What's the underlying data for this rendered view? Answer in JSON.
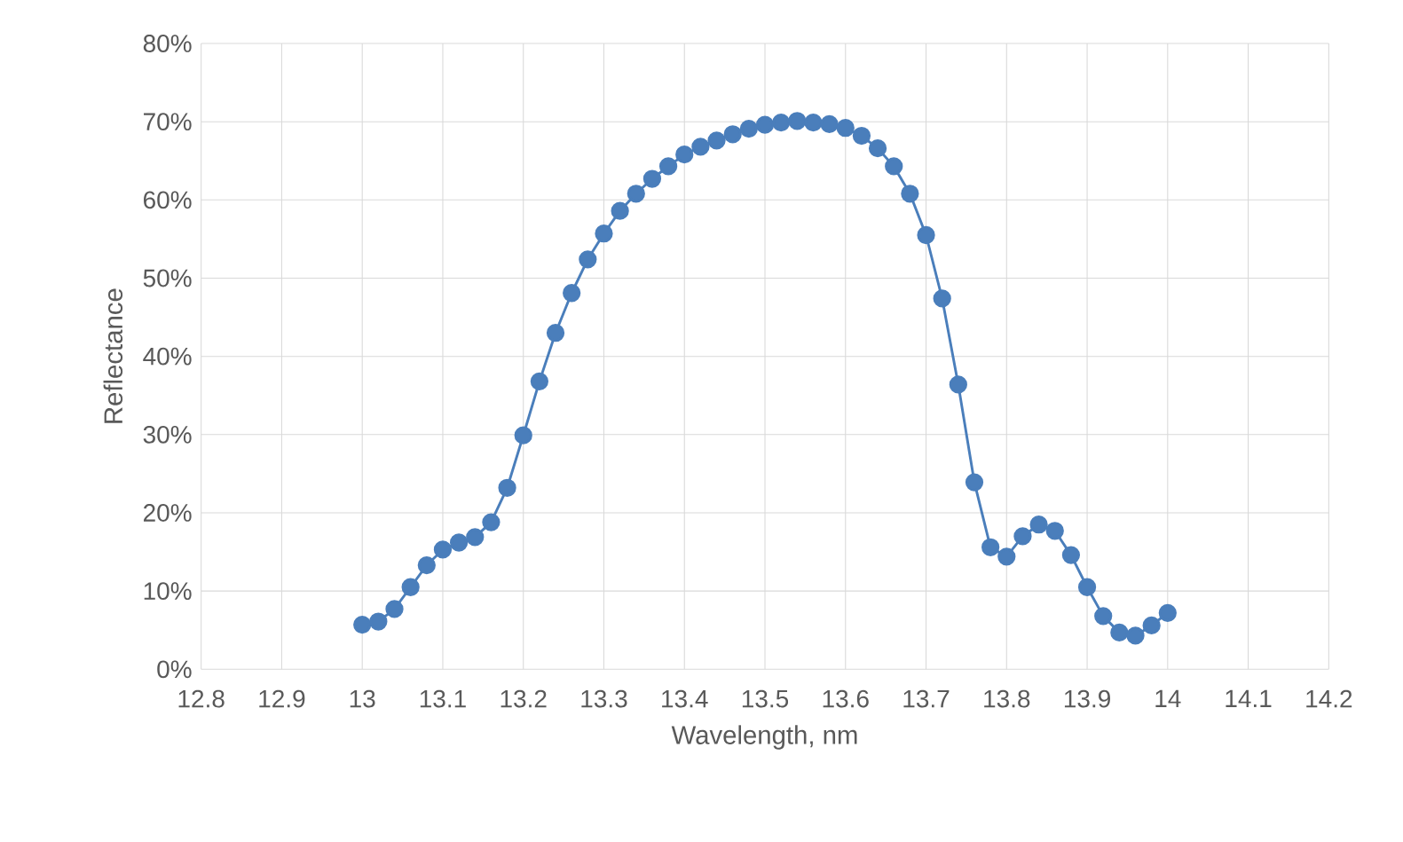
{
  "chart_data": {
    "type": "line",
    "xlabel": "Wavelength, nm",
    "ylabel": "Reflectance",
    "x": [
      13.0,
      13.02,
      13.04,
      13.06,
      13.08,
      13.1,
      13.12,
      13.14,
      13.16,
      13.18,
      13.2,
      13.22,
      13.24,
      13.26,
      13.28,
      13.3,
      13.32,
      13.34,
      13.36,
      13.38,
      13.4,
      13.42,
      13.44,
      13.46,
      13.48,
      13.5,
      13.52,
      13.54,
      13.56,
      13.58,
      13.6,
      13.62,
      13.64,
      13.66,
      13.68,
      13.7,
      13.72,
      13.74,
      13.76,
      13.78,
      13.8,
      13.82,
      13.84,
      13.86,
      13.88,
      13.9,
      13.92,
      13.94,
      13.96,
      13.98,
      14.0
    ],
    "values": [
      5.7,
      6.1,
      7.7,
      10.5,
      13.3,
      15.3,
      16.2,
      16.9,
      18.8,
      23.2,
      29.9,
      36.8,
      43.0,
      48.1,
      52.4,
      55.7,
      58.6,
      60.8,
      62.7,
      64.3,
      65.8,
      66.8,
      67.6,
      68.4,
      69.1,
      69.6,
      69.9,
      70.1,
      69.9,
      69.7,
      69.2,
      68.2,
      66.6,
      64.3,
      60.8,
      55.5,
      47.4,
      36.4,
      23.9,
      15.6,
      14.4,
      17.0,
      18.5,
      17.7,
      14.6,
      10.5,
      6.8,
      4.7,
      4.3,
      5.6,
      7.2
    ],
    "color": "#4a7ebb",
    "marker": "circle",
    "line_style": "solid",
    "grid": true,
    "xlim": [
      12.8,
      14.2
    ],
    "xticks": [
      12.8,
      12.9,
      13,
      13.1,
      13.2,
      13.3,
      13.4,
      13.5,
      13.6,
      13.7,
      13.8,
      13.9,
      14,
      14.1,
      14.2
    ],
    "ylim": [
      0,
      80
    ],
    "yticks": [
      {
        "value": 0,
        "label": "0%"
      },
      {
        "value": 10,
        "label": "10%"
      },
      {
        "value": 20,
        "label": "20%"
      },
      {
        "value": 30,
        "label": "30%"
      },
      {
        "value": 40,
        "label": "40%"
      },
      {
        "value": 50,
        "label": "50%"
      },
      {
        "value": 60,
        "label": "60%"
      },
      {
        "value": 70,
        "label": "70%"
      },
      {
        "value": 80,
        "label": "80%"
      }
    ]
  }
}
